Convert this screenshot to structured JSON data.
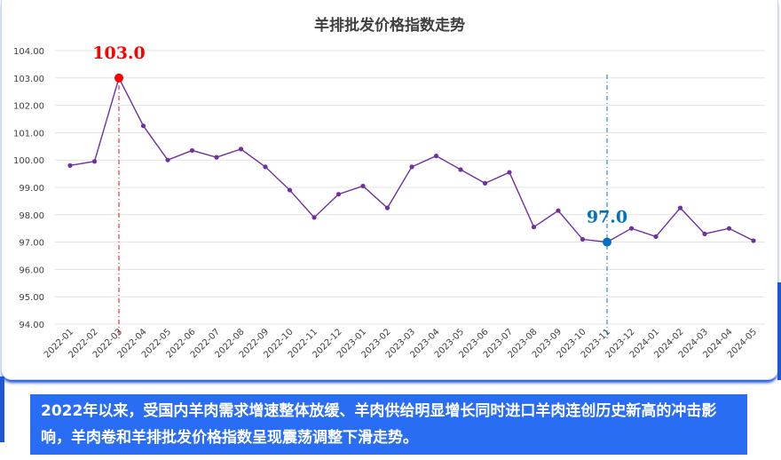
{
  "chart_data": {
    "type": "line",
    "title": "羊排批发价格指数走势",
    "xlabel": "",
    "ylabel": "",
    "ylim": [
      94,
      104
    ],
    "ytick_labels": [
      "104.00",
      "103.00",
      "102.00",
      "101.00",
      "100.00",
      "99.00",
      "98.00",
      "97.00",
      "96.00",
      "95.00",
      "94.00"
    ],
    "grid": true,
    "categories": [
      "2022-01",
      "2022-02",
      "2022-03",
      "2022-04",
      "2022-05",
      "2022-06",
      "2022-07",
      "2022-08",
      "2022-09",
      "2022-10",
      "2022-11",
      "2022-12",
      "2023-01",
      "2023-02",
      "2023-03",
      "2023-04",
      "2023-05",
      "2023-06",
      "2023-07",
      "2023-08",
      "2023-09",
      "2023-10",
      "2023-11",
      "2023-12",
      "2024-01",
      "2024-02",
      "2024-03",
      "2024-04",
      "2024-05"
    ],
    "series": [
      {
        "values": [
          99.8,
          99.95,
          103.0,
          101.25,
          100.0,
          100.35,
          100.1,
          100.4,
          99.75,
          98.9,
          97.9,
          98.75,
          99.05,
          98.25,
          99.75,
          100.15,
          99.65,
          99.15,
          99.55,
          97.55,
          98.15,
          97.1,
          97.0,
          97.5,
          97.2,
          98.25,
          97.3,
          97.5,
          97.05
        ],
        "color": "#7030a0"
      }
    ],
    "annotations": [
      {
        "category": "2022-03",
        "value": 103.0,
        "label": "103.0",
        "color": "#ff0000"
      },
      {
        "category": "2023-11",
        "value": 97.0,
        "label": "97.0",
        "color": "#0070c0"
      }
    ]
  },
  "caption": {
    "text": "2022年以来，受国内羊肉需求增速整体放缓、羊肉供给明显增长同时进口羊肉连创历史新高的冲击影响，羊肉卷和羊排批发价格指数呈现震荡调整下滑走势。",
    "background": "#2a6df5"
  }
}
